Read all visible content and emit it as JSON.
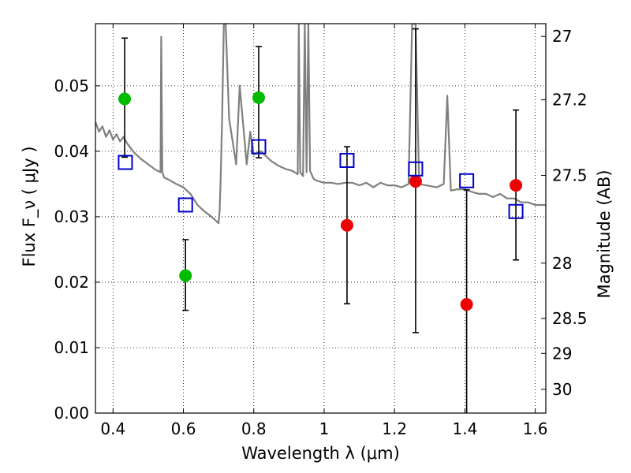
{
  "chart_data": {
    "type": "scatter",
    "xlabel": "Wavelength  λ (μm)",
    "ylabel": "Flux  F_ν  ( μJy )",
    "ylabel_right": "Magnitude (AB)",
    "xlim": [
      0.35,
      1.63
    ],
    "ylim": [
      0.0,
      0.0595
    ],
    "grid": true,
    "grid_style": "dotted",
    "x_ticks": [
      0.4,
      0.6,
      0.8,
      1.0,
      1.2,
      1.4,
      1.6
    ],
    "x_tick_labels": [
      "0.4",
      "0.6",
      "0.8",
      "1",
      "1.2",
      "1.4",
      "1.6"
    ],
    "y_ticks": [
      0.0,
      0.01,
      0.02,
      0.03,
      0.04,
      0.05
    ],
    "y_tick_labels": [
      "0.00",
      "0.01",
      "0.02",
      "0.03",
      "0.04",
      "0.05"
    ],
    "right_ticks": [
      27,
      27.2,
      27.5,
      28,
      28.5,
      29,
      30
    ],
    "right_tick_labels": [
      "27",
      "27.2",
      "27.5",
      "28",
      "28.5",
      "29",
      "30"
    ],
    "series": [
      {
        "color": "#00bb00",
        "marker": "circle",
        "x": [
          0.433,
          0.606,
          0.814
        ],
        "y": [
          0.048,
          0.021,
          0.0482
        ],
        "yerr_low": [
          0.0391,
          0.0157,
          0.039
        ],
        "yerr_high": [
          0.0573,
          0.0265,
          0.056
        ]
      },
      {
        "color": "#ee0000",
        "marker": "circle",
        "x": [
          1.065,
          1.26,
          1.405,
          1.545
        ],
        "y": [
          0.0287,
          0.0354,
          0.0166,
          0.0348
        ],
        "yerr_low": [
          0.0167,
          0.0123,
          0.0,
          0.0234
        ],
        "yerr_high": [
          0.0407,
          0.0587,
          0.0341,
          0.0463
        ]
      },
      {
        "color": "#0000cc",
        "marker": "open-square",
        "x": [
          0.435,
          0.606,
          0.814,
          1.065,
          1.26,
          1.405,
          1.545
        ],
        "y": [
          0.0383,
          0.0318,
          0.0407,
          0.0386,
          0.0373,
          0.0355,
          0.0308
        ]
      },
      {
        "color": "#808080",
        "marker": "line",
        "x": [
          0.35,
          0.36,
          0.37,
          0.38,
          0.39,
          0.4,
          0.41,
          0.42,
          0.43,
          0.44,
          0.45,
          0.46,
          0.47,
          0.48,
          0.5,
          0.52,
          0.535,
          0.537,
          0.54,
          0.545,
          0.56,
          0.58,
          0.6,
          0.62,
          0.64,
          0.66,
          0.68,
          0.69,
          0.7,
          0.703,
          0.706,
          0.71,
          0.715,
          0.72,
          0.73,
          0.75,
          0.76,
          0.78,
          0.79,
          0.8,
          0.82,
          0.85,
          0.87,
          0.89,
          0.91,
          0.925,
          0.928,
          0.932,
          0.94,
          0.945,
          0.95,
          0.955,
          0.96,
          0.97,
          0.98,
          1.0,
          1.02,
          1.04,
          1.06,
          1.08,
          1.1,
          1.12,
          1.14,
          1.16,
          1.18,
          1.2,
          1.22,
          1.24,
          1.25,
          1.26,
          1.27,
          1.29,
          1.32,
          1.34,
          1.35,
          1.36,
          1.38,
          1.4,
          1.42,
          1.44,
          1.46,
          1.48,
          1.5,
          1.52,
          1.54,
          1.56,
          1.58,
          1.6,
          1.63
        ],
        "y": [
          0.0445,
          0.043,
          0.0438,
          0.0422,
          0.0432,
          0.0418,
          0.0426,
          0.0415,
          0.0422,
          0.0412,
          0.0405,
          0.0398,
          0.0393,
          0.0388,
          0.038,
          0.0372,
          0.0368,
          0.0575,
          0.0368,
          0.036,
          0.0356,
          0.035,
          0.0345,
          0.0335,
          0.0318,
          0.0308,
          0.03,
          0.0295,
          0.029,
          0.031,
          0.036,
          0.045,
          0.06,
          0.06,
          0.045,
          0.038,
          0.05,
          0.038,
          0.043,
          0.0395,
          0.04,
          0.0385,
          0.0378,
          0.0373,
          0.037,
          0.0365,
          0.06,
          0.0368,
          0.0362,
          0.06,
          0.0368,
          0.06,
          0.037,
          0.0358,
          0.0355,
          0.0352,
          0.0352,
          0.035,
          0.0352,
          0.0352,
          0.0348,
          0.0352,
          0.0345,
          0.0352,
          0.0348,
          0.0348,
          0.0345,
          0.035,
          0.06,
          0.06,
          0.035,
          0.0348,
          0.0345,
          0.035,
          0.0485,
          0.034,
          0.0342,
          0.0342,
          0.0338,
          0.0335,
          0.0335,
          0.033,
          0.0335,
          0.0328,
          0.0328,
          0.0322,
          0.0322,
          0.0318,
          0.0318
        ]
      }
    ]
  }
}
